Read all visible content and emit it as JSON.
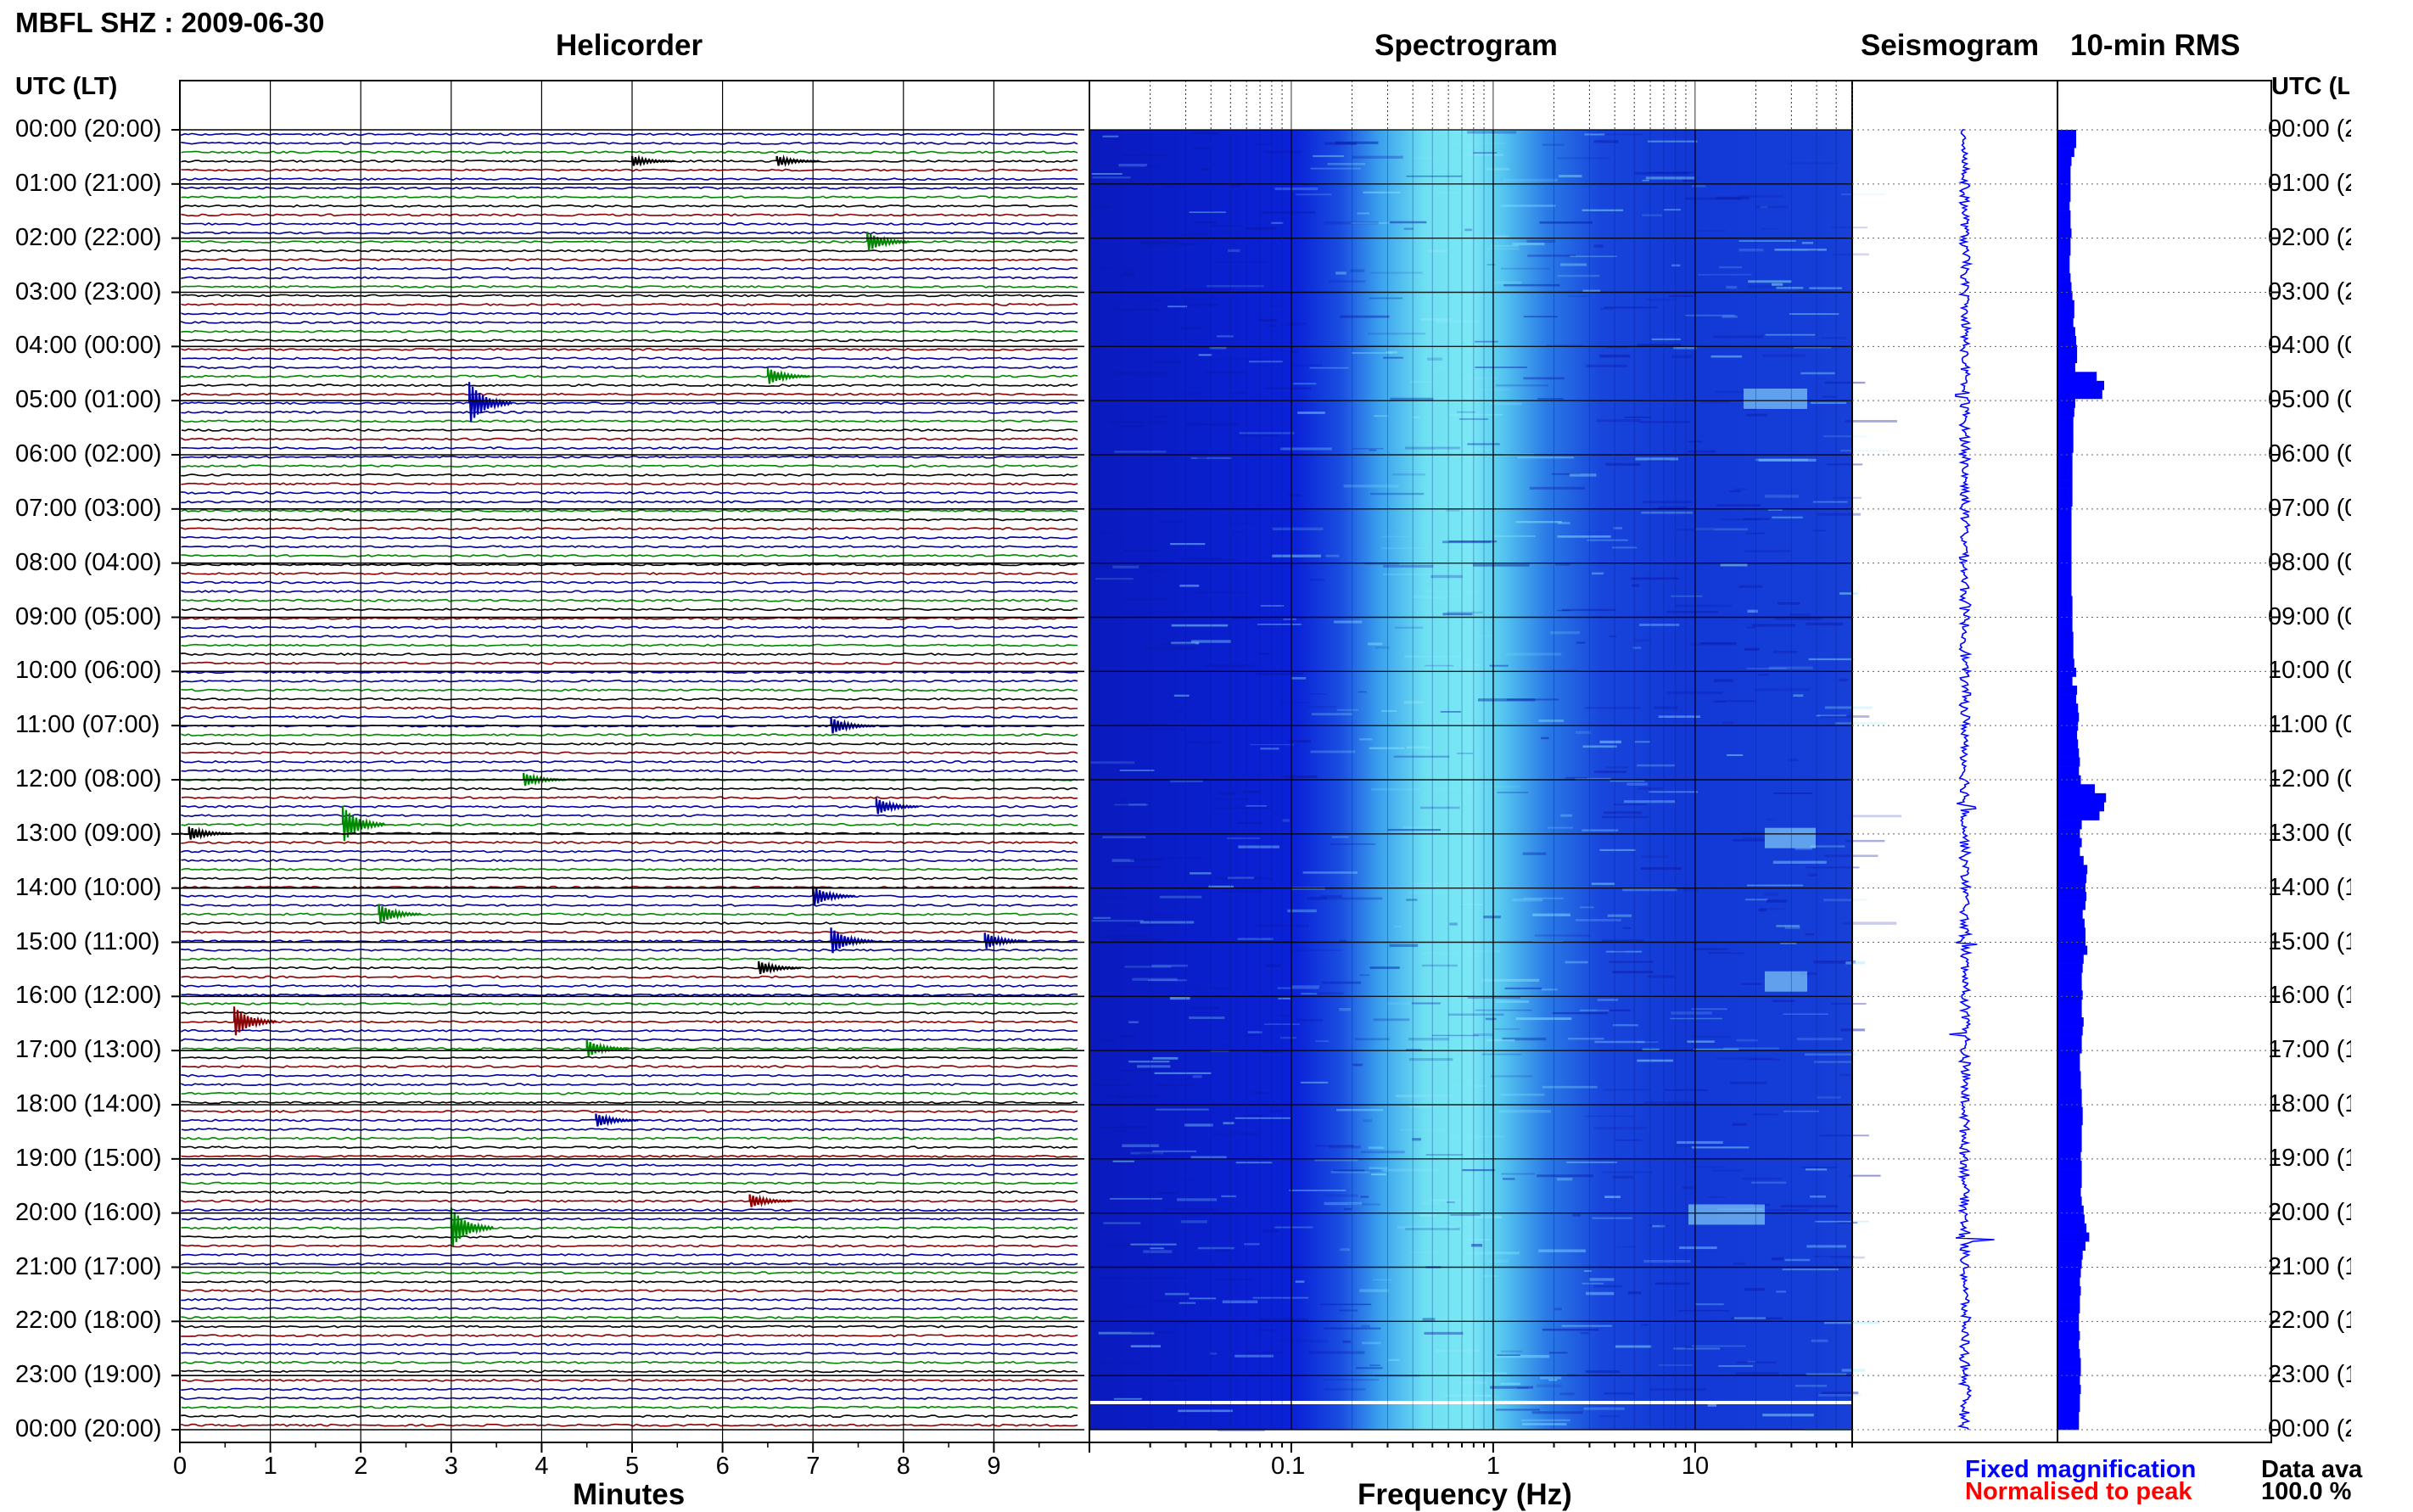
{
  "header": {
    "station_title": "MBFL SHZ : 2009-06-30",
    "panel_helicorder": "Helicorder",
    "panel_spectrogram": "Spectrogram",
    "panel_seismogram": "Seismogram",
    "panel_rms": "10-min RMS"
  },
  "axes": {
    "left_heading": "UTC (LT)",
    "right_heading": "UTC (L",
    "minutes_label": "Minutes",
    "frequency_label": "Frequency (Hz)",
    "minute_ticks": [
      "0",
      "1",
      "2",
      "3",
      "4",
      "5",
      "6",
      "7",
      "8",
      "9"
    ],
    "freq_ticks": [
      "0.1",
      "1",
      "10"
    ],
    "time_labels_left": [
      "00:00 (20:00)",
      "01:00 (21:00)",
      "02:00 (22:00)",
      "03:00 (23:00)",
      "04:00 (00:00)",
      "05:00 (01:00)",
      "06:00 (02:00)",
      "07:00 (03:00)",
      "08:00 (04:00)",
      "09:00 (05:00)",
      "10:00 (06:00)",
      "11:00 (07:00)",
      "12:00 (08:00)",
      "13:00 (09:00)",
      "14:00 (10:00)",
      "15:00 (11:00)",
      "16:00 (12:00)",
      "17:00 (13:00)",
      "18:00 (14:00)",
      "19:00 (15:00)",
      "20:00 (16:00)",
      "21:00 (17:00)",
      "22:00 (18:00)",
      "23:00 (19:00)",
      "00:00 (20:00)"
    ],
    "time_labels_right": [
      "00:00 (2",
      "01:00 (2",
      "02:00 (2",
      "03:00 (2",
      "04:00 (0",
      "05:00 (0",
      "06:00 (0",
      "07:00 (0",
      "08:00 (0",
      "09:00 (0",
      "10:00 (0",
      "11:00 (0",
      "12:00 (0",
      "13:00 (0",
      "14:00 (1",
      "15:00 (1",
      "16:00 (1",
      "17:00 (1",
      "18:00 (1",
      "19:00 (1",
      "20:00 (1",
      "21:00 (1",
      "22:00 (1",
      "23:00 (1",
      "00:00 (2"
    ]
  },
  "footer": {
    "fixed_magnification": "Fixed magnification",
    "normalised_to_peak": "Normalised to peak",
    "data_available_label": "Data ava",
    "data_available_value": "100.0 %"
  },
  "colors": {
    "helicorder_trace_cycle": [
      "#0000aa",
      "#00008b",
      "#008800",
      "#000000",
      "#8b0000"
    ],
    "spectrogram_low": "#0a1fcf",
    "spectrogram_high": "#7fe8f5",
    "seismogram": "#0000ff",
    "rms_bar": "#0000ff",
    "fixed_magnification_text": "#0000ff",
    "normalised_text": "#ff0000"
  },
  "chart_data": [
    {
      "type": "line",
      "name": "Helicorder",
      "xlabel": "Minutes",
      "xlim": [
        0,
        10
      ],
      "rows": 145,
      "events": [
        {
          "row": 3,
          "minute": 5.0,
          "amp": 0.6
        },
        {
          "row": 3,
          "minute": 6.6,
          "amp": 0.6
        },
        {
          "row": 12,
          "minute": 7.6,
          "amp": 1.2
        },
        {
          "row": 27,
          "minute": 6.5,
          "amp": 1.0
        },
        {
          "row": 30,
          "minute": 3.2,
          "amp": 2.5
        },
        {
          "row": 66,
          "minute": 7.2,
          "amp": 1.0
        },
        {
          "row": 72,
          "minute": 3.8,
          "amp": 0.8
        },
        {
          "row": 75,
          "minute": 7.7,
          "amp": 1.0
        },
        {
          "row": 77,
          "minute": 1.8,
          "amp": 2.2
        },
        {
          "row": 78,
          "minute": 0.1,
          "amp": 0.8
        },
        {
          "row": 85,
          "minute": 7.0,
          "amp": 1.2
        },
        {
          "row": 87,
          "minute": 2.2,
          "amp": 1.2
        },
        {
          "row": 90,
          "minute": 7.2,
          "amp": 1.6
        },
        {
          "row": 90,
          "minute": 8.9,
          "amp": 1.0
        },
        {
          "row": 93,
          "minute": 6.4,
          "amp": 0.8
        },
        {
          "row": 99,
          "minute": 0.6,
          "amp": 1.8
        },
        {
          "row": 102,
          "minute": 4.5,
          "amp": 1.0
        },
        {
          "row": 110,
          "minute": 4.6,
          "amp": 0.8
        },
        {
          "row": 119,
          "minute": 6.3,
          "amp": 0.8
        },
        {
          "row": 122,
          "minute": 3.0,
          "amp": 2.4
        }
      ]
    },
    {
      "type": "heatmap",
      "name": "Spectrogram",
      "xlabel": "Frequency (Hz)",
      "x_scale": "log",
      "xlim": [
        0.01,
        60
      ],
      "peak_band_hz": [
        0.3,
        1.5
      ],
      "rows": 145
    },
    {
      "type": "line",
      "name": "Seismogram",
      "rows": 145,
      "bursts": [
        {
          "row": 29,
          "amp": 0.35
        },
        {
          "row": 75,
          "amp": 0.4
        },
        {
          "row": 90,
          "amp": 0.4
        },
        {
          "row": 100,
          "amp": 0.3
        },
        {
          "row": 123,
          "amp": 0.45
        }
      ]
    },
    {
      "type": "bar",
      "name": "10-min RMS",
      "orientation": "horizontal",
      "values": [
        0.2,
        0.2,
        0.18,
        0.15,
        0.14,
        0.14,
        0.14,
        0.14,
        0.13,
        0.14,
        0.14,
        0.15,
        0.14,
        0.14,
        0.13,
        0.13,
        0.14,
        0.15,
        0.16,
        0.18,
        0.18,
        0.17,
        0.19,
        0.2,
        0.21,
        0.21,
        0.19,
        0.42,
        0.5,
        0.48,
        0.19,
        0.18,
        0.17,
        0.17,
        0.17,
        0.17,
        0.16,
        0.16,
        0.16,
        0.16,
        0.16,
        0.16,
        0.15,
        0.15,
        0.15,
        0.15,
        0.15,
        0.15,
        0.15,
        0.15,
        0.15,
        0.15,
        0.16,
        0.16,
        0.16,
        0.16,
        0.17,
        0.17,
        0.17,
        0.18,
        0.2,
        0.16,
        0.21,
        0.2,
        0.22,
        0.23,
        0.22,
        0.21,
        0.22,
        0.23,
        0.24,
        0.23,
        0.25,
        0.4,
        0.52,
        0.5,
        0.45,
        0.26,
        0.24,
        0.26,
        0.24,
        0.28,
        0.32,
        0.31,
        0.3,
        0.31,
        0.3,
        0.27,
        0.29,
        0.3,
        0.3,
        0.32,
        0.28,
        0.27,
        0.26,
        0.26,
        0.27,
        0.26,
        0.26,
        0.28,
        0.27,
        0.26,
        0.26,
        0.24,
        0.24,
        0.25,
        0.25,
        0.26,
        0.26,
        0.27,
        0.27,
        0.26,
        0.26,
        0.26,
        0.25,
        0.26,
        0.26,
        0.26,
        0.25,
        0.26,
        0.28,
        0.29,
        0.31,
        0.34,
        0.3,
        0.27,
        0.26,
        0.25,
        0.24,
        0.25,
        0.24,
        0.24,
        0.23,
        0.23,
        0.24,
        0.23,
        0.24,
        0.25,
        0.25,
        0.24,
        0.25,
        0.24,
        0.24,
        0.23,
        0.23
      ]
    }
  ]
}
